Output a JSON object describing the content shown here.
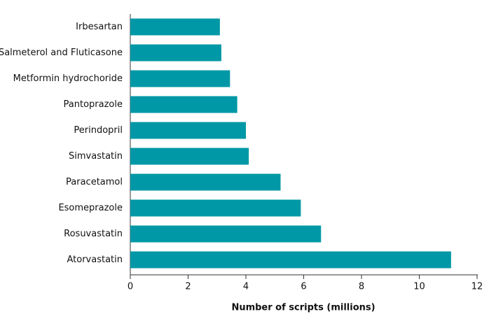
{
  "chart_data": {
    "type": "bar",
    "orientation": "horizontal",
    "xlabel": "Number of scripts (millions)",
    "categories": [
      "Irbesartan",
      "Salmeterol and Fluticasone",
      "Metformin hydrochoride",
      "Pantoprazole",
      "Perindopril",
      "Simvastatin",
      "Paracetamol",
      "Esomeprazole",
      "Rosuvastatin",
      "Atorvastatin"
    ],
    "values": [
      3.1,
      3.15,
      3.45,
      3.7,
      4.0,
      4.1,
      5.2,
      5.9,
      6.6,
      11.1
    ],
    "color": "#0098a6",
    "xlim": [
      0,
      12
    ],
    "xticks": [
      0,
      2,
      4,
      6,
      8,
      10,
      12
    ],
    "grid": false
  }
}
